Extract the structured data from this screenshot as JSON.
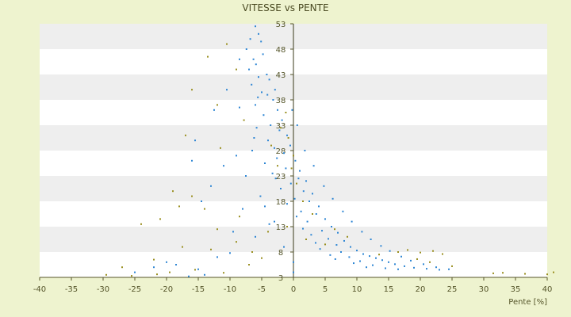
{
  "chart_data": {
    "type": "scatter",
    "title": "VITESSE vs PENTE",
    "xlabel": "Pente [%]",
    "ylabel": "",
    "xlim": [
      -40,
      40
    ],
    "ylim": [
      3,
      53
    ],
    "x_ticks": [
      "-40",
      "-35",
      "-30",
      "-25",
      "-20",
      "-15",
      "-10",
      "-5",
      "0",
      "5",
      "10",
      "15",
      "20",
      "25",
      "30",
      "35",
      "40"
    ],
    "y_ticks": [
      "3",
      "8",
      "13",
      "18",
      "23",
      "28",
      "33",
      "38",
      "43",
      "48",
      "53"
    ],
    "grid": "horizontal bands",
    "colors": {
      "series_main": "#2e86d4",
      "series_secondary": "#9a8f20",
      "band_light": "#ffffff",
      "band_dark": "#eeeeee",
      "axis": "#55552a"
    },
    "series": [
      {
        "points": [
          [
            -6.0,
            52.5
          ],
          [
            -5.5,
            51.0
          ],
          [
            -6.8,
            50.0
          ],
          [
            -5.1,
            49.5
          ],
          [
            -7.4,
            48.0
          ],
          [
            -4.8,
            47.0
          ],
          [
            -6.3,
            46.0
          ],
          [
            -5.9,
            45.0
          ],
          [
            -7.0,
            44.0
          ],
          [
            -4.2,
            43.0
          ],
          [
            -5.5,
            42.5
          ],
          [
            -3.8,
            42.0
          ],
          [
            -6.6,
            41.0
          ],
          [
            -2.9,
            40.0
          ],
          [
            -5.0,
            39.5
          ],
          [
            -4.1,
            39.0
          ],
          [
            -3.2,
            38.0
          ],
          [
            -6.0,
            37.0
          ],
          [
            -8.5,
            36.5
          ],
          [
            -2.5,
            36.0
          ],
          [
            -4.7,
            35.0
          ],
          [
            -1.8,
            34.0
          ],
          [
            -3.6,
            33.0
          ],
          [
            -5.8,
            32.5
          ],
          [
            -2.2,
            32.0
          ],
          [
            -1.0,
            31.0
          ],
          [
            -4.0,
            30.0
          ],
          [
            -0.5,
            29.0
          ],
          [
            -3.0,
            28.5
          ],
          [
            -6.5,
            28.0
          ],
          [
            -1.5,
            27.5
          ],
          [
            -9.0,
            27.0
          ],
          [
            -2.6,
            26.5
          ],
          [
            0.3,
            26.0
          ],
          [
            -4.5,
            25.5
          ],
          [
            -11.0,
            25.0
          ],
          [
            -1.2,
            24.5
          ],
          [
            1.0,
            24.0
          ],
          [
            -3.3,
            23.5
          ],
          [
            -7.5,
            23.0
          ],
          [
            0.8,
            22.5
          ],
          [
            2.0,
            22.0
          ],
          [
            -0.4,
            21.5
          ],
          [
            -13.0,
            21.0
          ],
          [
            -2.0,
            20.5
          ],
          [
            1.6,
            20.0
          ],
          [
            3.0,
            19.5
          ],
          [
            -5.2,
            19.0
          ],
          [
            0.2,
            18.5
          ],
          [
            2.5,
            18.0
          ],
          [
            -1.0,
            17.5
          ],
          [
            4.0,
            17.0
          ],
          [
            -8.0,
            16.5
          ],
          [
            1.2,
            16.0
          ],
          [
            3.6,
            15.5
          ],
          [
            0.5,
            15.0
          ],
          [
            5.0,
            14.5
          ],
          [
            2.2,
            14.0
          ],
          [
            -3.8,
            13.5
          ],
          [
            6.0,
            13.0
          ],
          [
            1.5,
            12.6
          ],
          [
            4.5,
            12.2
          ],
          [
            7.0,
            11.8
          ],
          [
            2.8,
            11.4
          ],
          [
            -6.0,
            11.0
          ],
          [
            5.5,
            10.6
          ],
          [
            8.0,
            10.2
          ],
          [
            3.5,
            9.8
          ],
          [
            6.8,
            9.4
          ],
          [
            9.0,
            9.0
          ],
          [
            4.2,
            8.6
          ],
          [
            10.0,
            8.3
          ],
          [
            7.5,
            8.0
          ],
          [
            -10.0,
            7.8
          ],
          [
            11.0,
            7.6
          ],
          [
            5.8,
            7.4
          ],
          [
            12.0,
            7.2
          ],
          [
            8.8,
            7.0
          ],
          [
            13.0,
            6.8
          ],
          [
            6.6,
            6.6
          ],
          [
            14.0,
            6.4
          ],
          [
            10.5,
            6.2
          ],
          [
            15.0,
            6.0
          ],
          [
            9.5,
            5.8
          ],
          [
            16.0,
            5.6
          ],
          [
            12.5,
            5.4
          ],
          [
            17.5,
            5.2
          ],
          [
            11.5,
            5.0
          ],
          [
            19.0,
            4.9
          ],
          [
            14.5,
            4.8
          ],
          [
            21.0,
            4.7
          ],
          [
            16.5,
            4.6
          ],
          [
            23.0,
            4.5
          ],
          [
            -15.0,
            4.6
          ],
          [
            -18.5,
            5.5
          ],
          [
            -20.0,
            6.0
          ],
          [
            -25.0,
            4.0
          ],
          [
            -22.0,
            5.0
          ],
          [
            -16.5,
            3.2
          ],
          [
            -14.0,
            3.5
          ],
          [
            -12.0,
            7.0
          ],
          [
            -9.5,
            12.0
          ],
          [
            -14.5,
            18.0
          ],
          [
            -16.0,
            26.0
          ],
          [
            -15.5,
            30.0
          ],
          [
            -12.5,
            36.0
          ],
          [
            -10.5,
            40.0
          ],
          [
            -8.5,
            46.0
          ],
          [
            -3.0,
            14.0
          ],
          [
            -1.5,
            9.0
          ],
          [
            0.0,
            6.0
          ],
          [
            0.0,
            4.0
          ],
          [
            -4.5,
            17.0
          ],
          [
            -2.8,
            22.5
          ],
          [
            -6.2,
            30.5
          ],
          [
            -5.6,
            38.5
          ],
          [
            3.2,
            25.0
          ],
          [
            1.8,
            28.0
          ],
          [
            0.6,
            33.0
          ],
          [
            -0.2,
            36.0
          ],
          [
            4.8,
            21.0
          ],
          [
            6.2,
            18.5
          ],
          [
            7.8,
            16.0
          ],
          [
            9.2,
            14.0
          ],
          [
            10.8,
            12.0
          ],
          [
            12.2,
            10.5
          ],
          [
            13.8,
            9.2
          ],
          [
            15.2,
            8.2
          ],
          [
            17.0,
            7.1
          ],
          [
            18.5,
            6.3
          ],
          [
            20.5,
            5.6
          ],
          [
            22.5,
            5.0
          ],
          [
            24.5,
            4.6
          ]
        ]
      },
      {
        "points": [
          [
            -10.5,
            49.0
          ],
          [
            -13.5,
            46.5
          ],
          [
            -9.0,
            44.0
          ],
          [
            -16.0,
            40.0
          ],
          [
            -12.0,
            37.0
          ],
          [
            -7.8,
            34.0
          ],
          [
            -17.0,
            31.0
          ],
          [
            -11.5,
            28.5
          ],
          [
            -3.5,
            29.0
          ],
          [
            -0.8,
            30.5
          ],
          [
            -2.5,
            25.0
          ],
          [
            -19.0,
            20.0
          ],
          [
            -16.0,
            19.0
          ],
          [
            -18.0,
            17.0
          ],
          [
            -14.0,
            16.5
          ],
          [
            -8.5,
            15.0
          ],
          [
            -24.0,
            13.5
          ],
          [
            -21.0,
            14.5
          ],
          [
            -12.0,
            12.5
          ],
          [
            -4.0,
            12.0
          ],
          [
            -1.0,
            13.0
          ],
          [
            2.0,
            10.5
          ],
          [
            3.0,
            15.5
          ],
          [
            5.0,
            9.5
          ],
          [
            -17.5,
            9.0
          ],
          [
            -13.0,
            8.5
          ],
          [
            -9.0,
            10.0
          ],
          [
            -6.5,
            8.0
          ],
          [
            -22.0,
            6.5
          ],
          [
            -27.0,
            5.0
          ],
          [
            -19.5,
            4.0
          ],
          [
            -15.5,
            4.5
          ],
          [
            -29.5,
            3.5
          ],
          [
            -25.5,
            3.3
          ],
          [
            -21.5,
            3.6
          ],
          [
            -11.0,
            3.9
          ],
          [
            -7.0,
            5.5
          ],
          [
            -5.0,
            6.8
          ],
          [
            0.5,
            21.5
          ],
          [
            1.5,
            18.0
          ],
          [
            6.5,
            12.5
          ],
          [
            8.5,
            11.0
          ],
          [
            13.5,
            7.5
          ],
          [
            16.5,
            8.0
          ],
          [
            18.0,
            8.4
          ],
          [
            20.0,
            7.9
          ],
          [
            22.0,
            8.2
          ],
          [
            23.5,
            7.6
          ],
          [
            19.5,
            6.6
          ],
          [
            21.5,
            6.0
          ],
          [
            25.0,
            5.2
          ],
          [
            31.5,
            3.8
          ],
          [
            33.0,
            3.9
          ],
          [
            36.5,
            3.7
          ],
          [
            40.0,
            3.6
          ],
          [
            41.0,
            4.0
          ],
          [
            -0.3,
            24.5
          ],
          [
            0.0,
            27.0
          ],
          [
            -2.0,
            32.5
          ],
          [
            -1.2,
            35.5
          ]
        ]
      }
    ]
  }
}
